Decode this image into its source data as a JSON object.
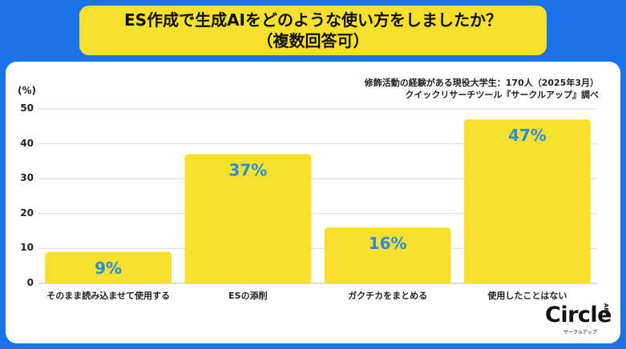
{
  "title": {
    "line1": "ES作成で生成AIをどのような使い方をしましたか？",
    "line2": "（複数回答可）"
  },
  "source": {
    "line1": "修飾活動の経験がある現役大学生：170人（2025年3月）",
    "line2": "クイックリサーチツール『サークルアップ』調べ"
  },
  "logo": {
    "word": "Circle",
    "app": "APP",
    "sub": "サークルアップ"
  },
  "chart_data": {
    "type": "bar",
    "ylabel": "(%)",
    "ylim": [
      0,
      50
    ],
    "yticks": [
      0,
      10,
      20,
      30,
      40,
      50
    ],
    "grid": true,
    "categories": [
      "そのまま読み込ませて使用する",
      "ESの添削",
      "ガクチカをまとめる",
      "使用したことはない"
    ],
    "values": [
      9,
      37,
      16,
      47
    ],
    "value_labels": [
      "9%",
      "37%",
      "16%",
      "47%"
    ],
    "bar_color": "#f7e12c",
    "label_color": "#2a8de0"
  }
}
